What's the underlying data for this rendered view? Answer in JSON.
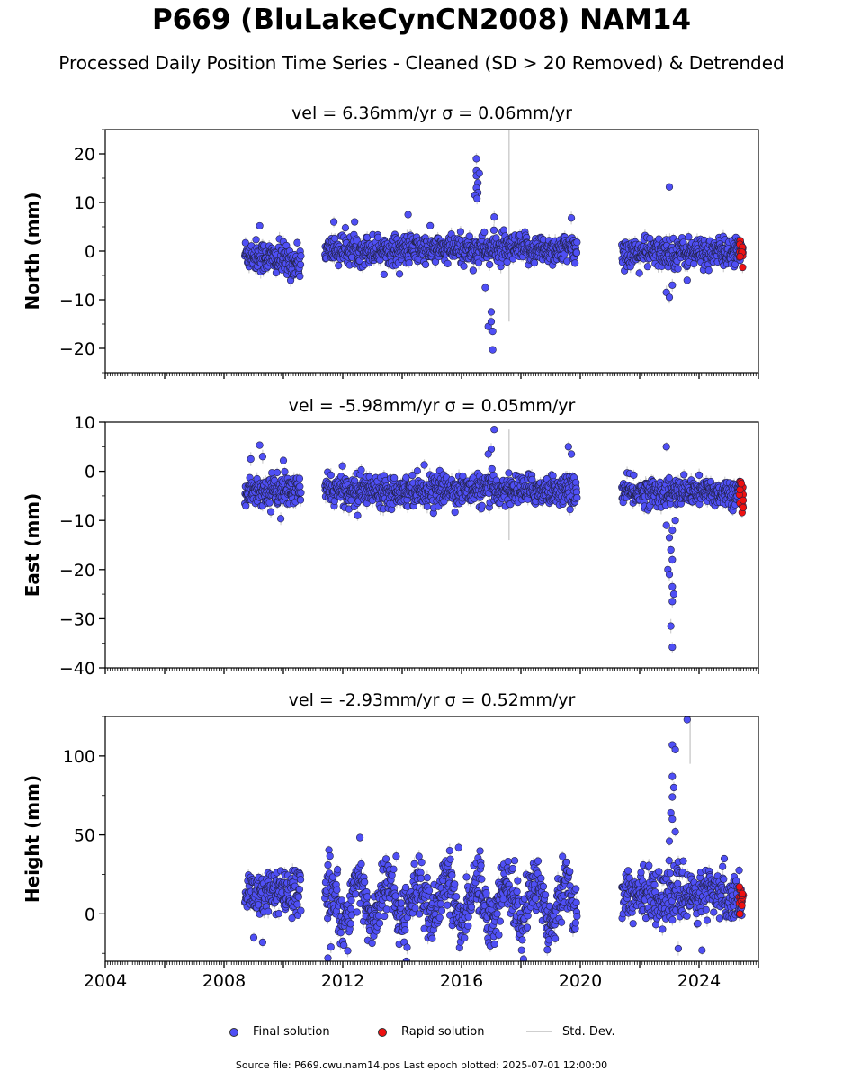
{
  "title": "P669 (BluLakeCynCN2008) NAM14",
  "subtitle": "Processed Daily Position Time Series - Cleaned (SD > 20 Removed) & Detrended",
  "footer": "Source file: P669.cwu.nam14.pos  Last epoch plotted: 2025-07-01 12:00:00",
  "legend": {
    "final": "Final solution",
    "rapid": "Rapid solution",
    "std": "Std. Dev."
  },
  "colors": {
    "final": "#4f4ff5",
    "rapid": "#ee1111",
    "std": "#cfcfcf",
    "marker_edge": "#222244"
  },
  "chart_data": [
    {
      "type": "scatter",
      "title": "vel = 6.36mm/yr   σ = 0.06mm/yr",
      "ylabel": "North (mm)",
      "xlim": [
        2004.0,
        2026.0
      ],
      "ylim": [
        -25,
        25
      ],
      "yticks": [
        -20,
        -10,
        0,
        10,
        20
      ],
      "xticks": [],
      "segments": [
        {
          "start": 2008.7,
          "end": 2010.6,
          "level": -0.5,
          "spread": 1.6,
          "trend": -2.0
        },
        {
          "start": 2011.4,
          "end": 2019.9,
          "level": 0.3,
          "spread": 1.5,
          "trend": 0
        },
        {
          "start": 2021.4,
          "end": 2025.45,
          "level": -0.3,
          "spread": 1.5,
          "trend": 0
        }
      ],
      "outliers": [
        {
          "x": 2016.5,
          "y": 19.0
        },
        {
          "x": 2016.5,
          "y": 16.5
        },
        {
          "x": 2016.5,
          "y": 15.5
        },
        {
          "x": 2016.55,
          "y": 14.0
        },
        {
          "x": 2016.5,
          "y": 13.0
        },
        {
          "x": 2016.55,
          "y": 12.0
        },
        {
          "x": 2016.45,
          "y": 11.5
        },
        {
          "x": 2016.6,
          "y": 16.0
        },
        {
          "x": 2016.52,
          "y": 10.8
        },
        {
          "x": 2016.9,
          "y": -15.5
        },
        {
          "x": 2017.0,
          "y": -12.5
        },
        {
          "x": 2017.0,
          "y": -14.5
        },
        {
          "x": 2017.05,
          "y": -16.5
        },
        {
          "x": 2017.05,
          "y": -20.3
        },
        {
          "x": 2016.8,
          "y": -7.5
        },
        {
          "x": 2014.2,
          "y": 7.5
        },
        {
          "x": 2017.1,
          "y": 7.0
        },
        {
          "x": 2023.0,
          "y": 13.2
        },
        {
          "x": 2019.7,
          "y": 6.8
        },
        {
          "x": 2009.2,
          "y": 5.2
        },
        {
          "x": 2011.7,
          "y": 6.0
        },
        {
          "x": 2022.9,
          "y": -8.5
        },
        {
          "x": 2023.0,
          "y": -9.5
        },
        {
          "x": 2023.1,
          "y": -7.0
        },
        {
          "x": 2023.6,
          "y": -6.0
        }
      ],
      "error_spikes": [
        {
          "x": 2017.6,
          "y1": -14.5,
          "y2": 25.0
        }
      ],
      "rapid": {
        "start": 2025.35,
        "end": 2025.5,
        "level": 0,
        "spread": 1.4
      }
    },
    {
      "type": "scatter",
      "title": "vel = -5.98mm/yr   σ = 0.05mm/yr",
      "ylabel": "East (mm)",
      "xlim": [
        2004.0,
        2026.0
      ],
      "ylim": [
        -40,
        10
      ],
      "yticks": [
        -40,
        -30,
        -20,
        -10,
        0,
        10
      ],
      "xticks": [],
      "segments": [
        {
          "start": 2008.7,
          "end": 2010.6,
          "level": -4.0,
          "spread": 1.5,
          "trend": 0
        },
        {
          "start": 2011.4,
          "end": 2019.9,
          "level": -3.8,
          "spread": 1.5,
          "trend": 0
        },
        {
          "start": 2021.4,
          "end": 2025.45,
          "level": -4.3,
          "spread": 1.4,
          "trend": 0
        }
      ],
      "outliers": [
        {
          "x": 2009.2,
          "y": 5.3
        },
        {
          "x": 2009.3,
          "y": 3.0
        },
        {
          "x": 2008.9,
          "y": 2.5
        },
        {
          "x": 2010.0,
          "y": 2.2
        },
        {
          "x": 2017.1,
          "y": 8.5
        },
        {
          "x": 2017.0,
          "y": 4.5
        },
        {
          "x": 2016.9,
          "y": 3.5
        },
        {
          "x": 2019.6,
          "y": 5.0
        },
        {
          "x": 2019.7,
          "y": 3.5
        },
        {
          "x": 2022.9,
          "y": 5.0
        },
        {
          "x": 2023.1,
          "y": -12.0
        },
        {
          "x": 2023.0,
          "y": -13.5
        },
        {
          "x": 2023.05,
          "y": -16.0
        },
        {
          "x": 2023.1,
          "y": -18.0
        },
        {
          "x": 2022.95,
          "y": -20.0
        },
        {
          "x": 2023.0,
          "y": -21.0
        },
        {
          "x": 2023.1,
          "y": -23.5
        },
        {
          "x": 2023.15,
          "y": -25.0
        },
        {
          "x": 2023.1,
          "y": -26.5
        },
        {
          "x": 2023.05,
          "y": -31.5
        },
        {
          "x": 2023.1,
          "y": -35.8
        },
        {
          "x": 2022.9,
          "y": -11.0
        },
        {
          "x": 2023.2,
          "y": -10.0
        },
        {
          "x": 2012.5,
          "y": -9.0
        }
      ],
      "error_spikes": [
        {
          "x": 2017.6,
          "y1": -14.0,
          "y2": 8.5
        }
      ],
      "rapid": {
        "start": 2025.35,
        "end": 2025.5,
        "level": -4.5,
        "spread": 1.3
      }
    },
    {
      "type": "scatter",
      "title": "vel = -2.93mm/yr   σ = 0.52mm/yr",
      "ylabel": "Height (mm)",
      "xlim": [
        2004.0,
        2026.0
      ],
      "ylim": [
        -30,
        125
      ],
      "yticks": [
        0,
        50,
        100
      ],
      "xticks": [
        "2004",
        "2008",
        "2012",
        "2016",
        "2020",
        "2024"
      ],
      "segments": [
        {
          "start": 2008.7,
          "end": 2010.6,
          "level": 13,
          "spread": 7,
          "trend": 0
        },
        {
          "start": 2011.4,
          "end": 2019.9,
          "level": 8,
          "spread": 9,
          "trend": 0,
          "seasonal": 12
        },
        {
          "start": 2021.4,
          "end": 2025.45,
          "level": 12,
          "spread": 8,
          "trend": 0
        }
      ],
      "outliers": [
        {
          "x": 2023.1,
          "y": 107
        },
        {
          "x": 2023.2,
          "y": 104
        },
        {
          "x": 2023.1,
          "y": 87
        },
        {
          "x": 2023.15,
          "y": 80
        },
        {
          "x": 2023.1,
          "y": 74
        },
        {
          "x": 2023.05,
          "y": 64
        },
        {
          "x": 2023.1,
          "y": 60
        },
        {
          "x": 2023.2,
          "y": 52
        },
        {
          "x": 2023.0,
          "y": 46
        },
        {
          "x": 2023.6,
          "y": 123
        },
        {
          "x": 2023.3,
          "y": -22
        },
        {
          "x": 2024.1,
          "y": -23
        },
        {
          "x": 2011.5,
          "y": -28
        },
        {
          "x": 2011.6,
          "y": -21
        },
        {
          "x": 2009.0,
          "y": -15
        },
        {
          "x": 2009.3,
          "y": -18
        },
        {
          "x": 2015.6,
          "y": 40
        },
        {
          "x": 2015.9,
          "y": 42
        }
      ],
      "error_spikes": [
        {
          "x": 2023.7,
          "y1": 95,
          "y2": 125
        }
      ],
      "rapid": {
        "start": 2025.35,
        "end": 2025.5,
        "level": 10,
        "spread": 4
      }
    }
  ]
}
